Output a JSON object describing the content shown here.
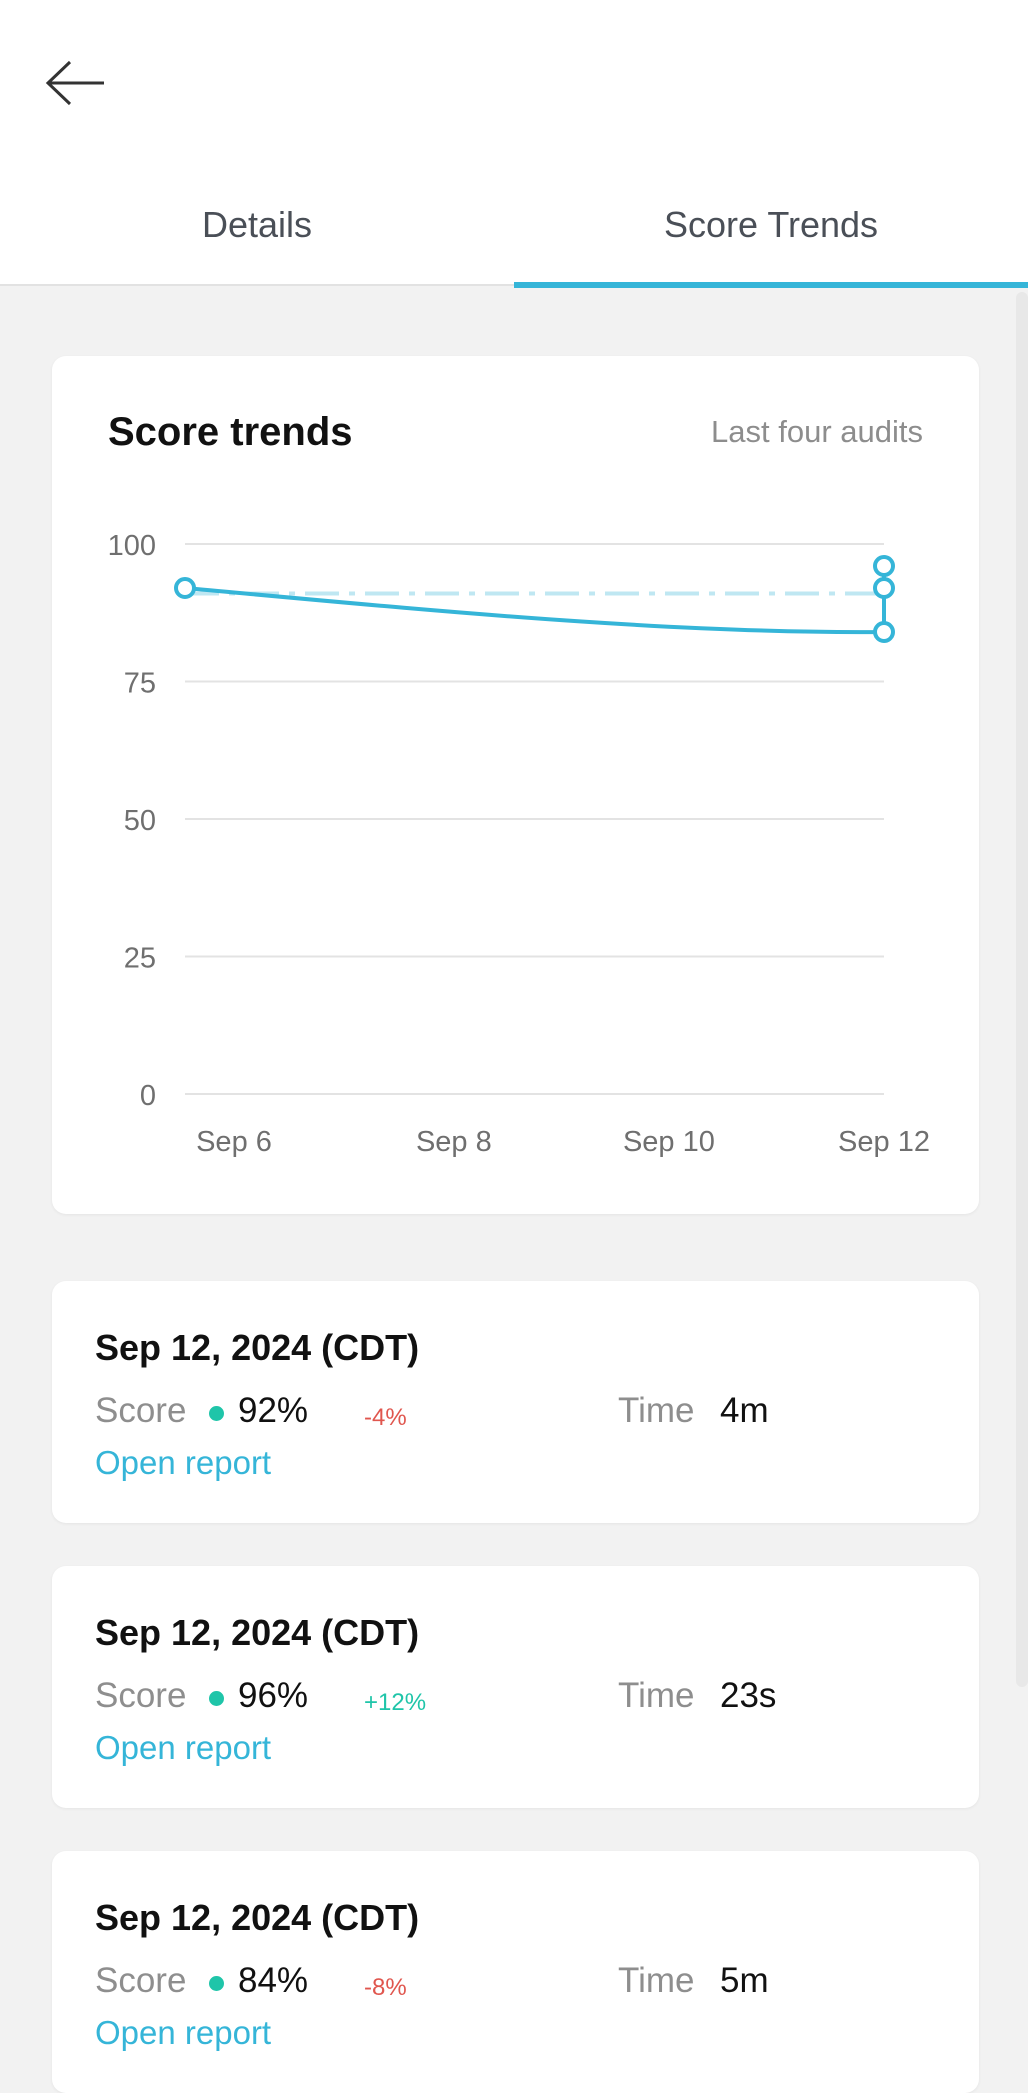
{
  "nav": {
    "back_icon": "arrow-left-icon",
    "tabs": [
      {
        "label": "Details",
        "active": false
      },
      {
        "label": "Score Trends",
        "active": true
      }
    ]
  },
  "colors": {
    "accent": "#35b5d8",
    "positive": "#1fc5a9",
    "negative": "#e0564e",
    "background": "#f2f2f2"
  },
  "chart_card": {
    "title": "Score trends",
    "subtitle": "Last four audits"
  },
  "chart_data": {
    "type": "line",
    "title": "Score trends",
    "subtitle": "Last four audits",
    "xlabel": "",
    "ylabel": "",
    "ylim": [
      0,
      100
    ],
    "y_ticks": [
      100,
      75,
      50,
      25,
      0
    ],
    "x_ticks": [
      "Sep 6",
      "Sep 8",
      "Sep 10",
      "Sep 12"
    ],
    "x_tick_days": [
      6,
      8,
      10,
      12
    ],
    "grid": true,
    "series": [
      {
        "name": "",
        "style": "solid",
        "points": [
          {
            "x": 5.5,
            "y": 92
          },
          {
            "x": 12,
            "y": 84
          },
          {
            "x": 12,
            "y": 96
          },
          {
            "x": 12,
            "y": 92
          }
        ]
      },
      {
        "name": "",
        "style": "dash-dot",
        "points": [
          {
            "x": 5.5,
            "y": 91
          },
          {
            "x": 12,
            "y": 91
          }
        ]
      }
    ]
  },
  "audits": [
    {
      "date": "Sep 12, 2024 (CDT)",
      "score_label": "Score",
      "score": "92%",
      "delta": "-4%",
      "delta_sign": "negative",
      "time_label": "Time",
      "time": "4m",
      "link": "Open report"
    },
    {
      "date": "Sep 12, 2024 (CDT)",
      "score_label": "Score",
      "score": "96%",
      "delta": "+12%",
      "delta_sign": "positive",
      "time_label": "Time",
      "time": "23s",
      "link": "Open report"
    },
    {
      "date": "Sep 12, 2024 (CDT)",
      "score_label": "Score",
      "score": "84%",
      "delta": "-8%",
      "delta_sign": "negative",
      "time_label": "Time",
      "time": "5m",
      "link": "Open report"
    }
  ]
}
